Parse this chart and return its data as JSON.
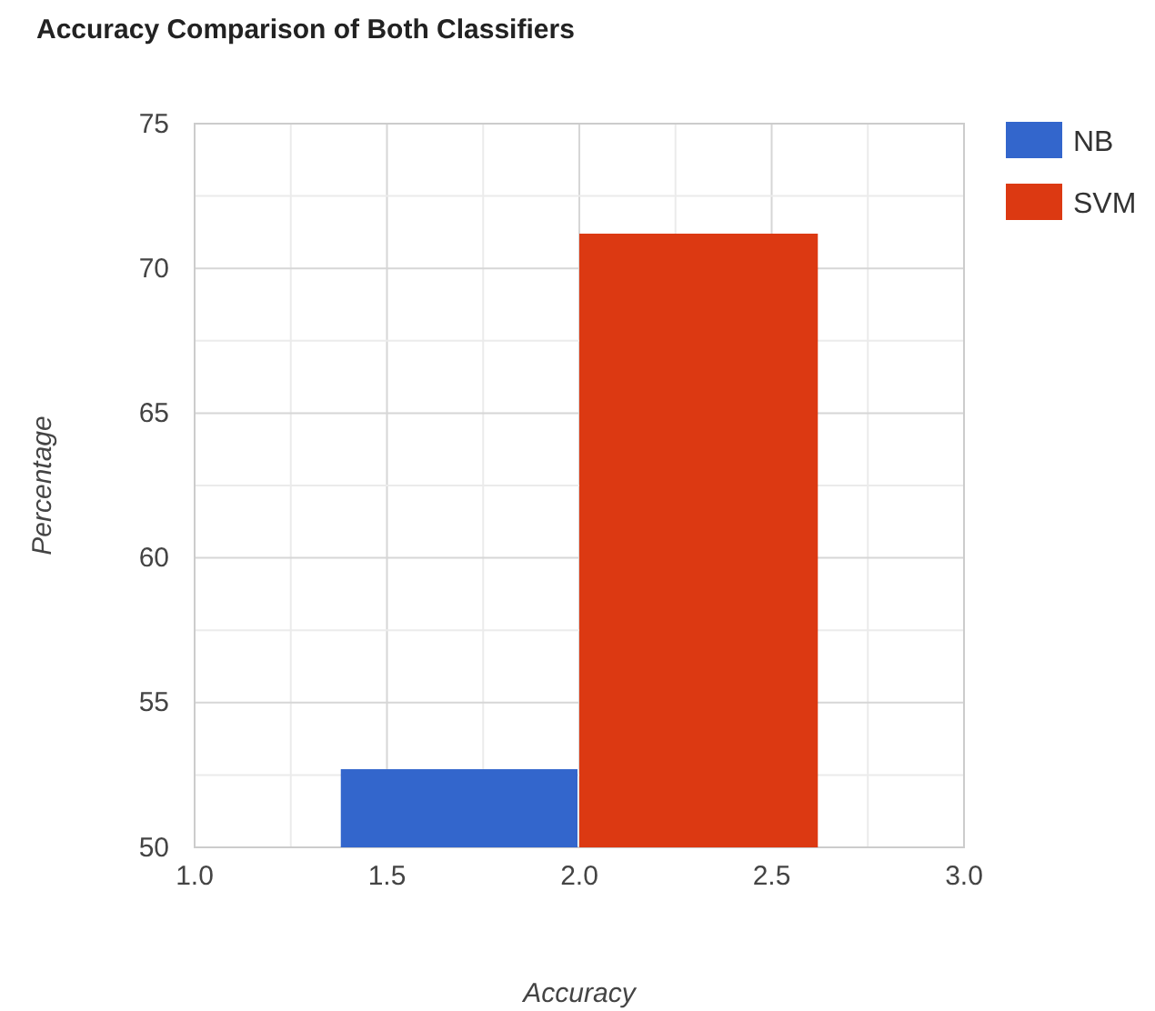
{
  "chart_data": {
    "type": "bar",
    "title": "Accuracy Comparison of Both Classifiers",
    "xlabel": "Accuracy",
    "ylabel": "Percentage",
    "series": [
      {
        "name": "NB",
        "color": "#3366cc",
        "x": [
          1.69
        ],
        "values": [
          52.7
        ]
      },
      {
        "name": "SVM",
        "color": "#dc3912",
        "x": [
          2.31
        ],
        "values": [
          71.2
        ]
      }
    ],
    "xlim": [
      1,
      3
    ],
    "xticks": [
      {
        "value": 1,
        "label": "1.0"
      },
      {
        "value": 1.25,
        "label": null
      },
      {
        "value": 1.5,
        "label": "1.5"
      },
      {
        "value": 1.75,
        "label": null
      },
      {
        "value": 2,
        "label": "2.0"
      },
      {
        "value": 2.25,
        "label": null
      },
      {
        "value": 2.5,
        "label": "2.5"
      },
      {
        "value": 2.75,
        "label": null
      },
      {
        "value": 3,
        "label": "3.0"
      }
    ],
    "ylim": [
      50,
      75
    ],
    "yticks": [
      50,
      {
        "value": 52.5,
        "label": null
      },
      55,
      {
        "value": 57.5,
        "label": null
      },
      60,
      {
        "value": 62.5,
        "label": null
      },
      65,
      {
        "value": 67.5,
        "label": null
      },
      70,
      {
        "value": 72.5,
        "label": null
      },
      75
    ],
    "grid": true,
    "legend": "right"
  }
}
